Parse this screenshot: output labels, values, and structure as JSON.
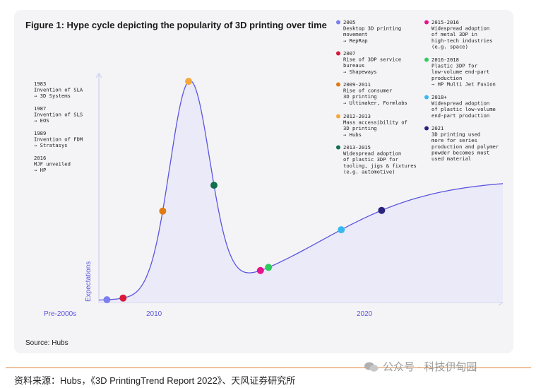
{
  "title": "Figure 1: Hype cycle depicting the popularity of 3D printing over time",
  "source": "Source: Hubs",
  "credit": "资料来源：Hubs，《3D PrintingTrend Report 2022》、天风证券研究所",
  "watermark": "公众号 · 科技伊甸园",
  "colors": {
    "curve": "#5b55e0",
    "fill": "#ebeaf8",
    "axis": "#c9c8ee",
    "axis_label": "#5b55e0",
    "card": "#f4f4f6",
    "rule": "#e0853a"
  },
  "chart_data": {
    "type": "line",
    "title": "Figure 1: Hype cycle depicting the popularity of 3D printing over time",
    "xlabel": "",
    "ylabel": "Expectations",
    "x_ticks": [
      "Pre-2000s",
      "2010",
      "2020"
    ],
    "grid": false,
    "left_annotations": [
      {
        "lines": [
          "1983",
          "Invention of SLA",
          "→ 3D Systems"
        ]
      },
      {
        "lines": [
          "1987",
          "Invention of SLS",
          "→ EOS"
        ]
      },
      {
        "lines": [
          "1989",
          "Invention of FDM",
          "→ Stratasys"
        ]
      },
      {
        "lines": [
          "2016",
          "MJF unveiled",
          "→ HP"
        ]
      }
    ],
    "milestones": [
      {
        "year": "2005",
        "lines": [
          "Desktop 3D printing",
          "movement",
          "→ RepRap"
        ],
        "color": "#7b7ef0",
        "t": 0.02
      },
      {
        "year": "2007",
        "lines": [
          "Rise of 3DP service",
          "bureaus",
          "→ Shapeways"
        ],
        "color": "#d8193a",
        "t": 0.06
      },
      {
        "year": "2009-2011",
        "lines": [
          "Rise of consumer",
          "3D printing",
          "→ Ultimaker, Formlabs"
        ],
        "color": "#e07a12",
        "t": 0.158
      },
      {
        "year": "2012-2013",
        "lines": [
          "Mass accessibility of",
          "3D printing",
          "→ Hubs"
        ],
        "color": "#f5a93a",
        "t": 0.222
      },
      {
        "year": "2013-2015",
        "lines": [
          "Widespread adoption",
          "of plastic 3DP for",
          "tooling, jigs & fixtures",
          "(e.g. automotive)"
        ],
        "color": "#12704a",
        "t": 0.285
      },
      {
        "year": "2015-2016",
        "lines": [
          "Widespread adoption",
          "of metal 3DP in",
          "high-tech industries",
          "(e.g. space)"
        ],
        "color": "#e8128c",
        "t": 0.4
      },
      {
        "year": "2016-2018",
        "lines": [
          "Plastic 3DP for",
          "low-volume end-part",
          "production",
          "→ HP Multi Jet Fusion"
        ],
        "color": "#2ecc5e",
        "t": 0.42
      },
      {
        "year": "2018+",
        "lines": [
          "Widespread adoption",
          "of plastic low-volume",
          "end-part production"
        ],
        "color": "#38b8f0",
        "t": 0.6
      },
      {
        "year": "2021",
        "lines": [
          "3D printing used",
          "more for series",
          "production and polymer",
          "powder becomes most",
          "used material"
        ],
        "color": "#2a2480",
        "t": 0.7
      }
    ]
  }
}
